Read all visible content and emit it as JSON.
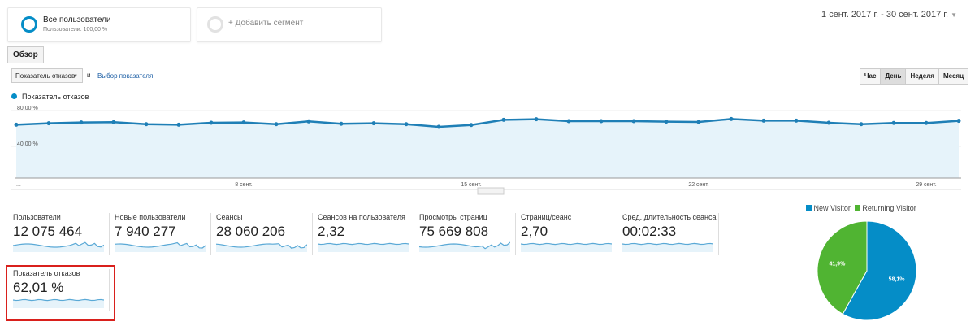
{
  "segments": [
    {
      "title": "Все пользователи",
      "subtitle": "Пользователи: 100,00 %"
    },
    {
      "title": "+ Добавить сегмент"
    }
  ],
  "date_range": "1 сент. 2017 г. - 30 сент. 2017 г.",
  "tab": "Обзор",
  "metric_select": "Показатель отказов",
  "and_label": "и",
  "choose_metric": "Выбор показателя",
  "granularity": [
    {
      "label": "Час"
    },
    {
      "label": "День",
      "active": true
    },
    {
      "label": "Неделя"
    },
    {
      "label": "Месяц"
    }
  ],
  "colors": {
    "accent": "#058dc7",
    "green": "#50b432",
    "highlight": "#d9201c"
  },
  "chart_data": [
    {
      "type": "area",
      "legend": "Показатель отказов",
      "y_ticks": [
        "80,00 %",
        "40,00 %"
      ],
      "x_ticks": [
        "...",
        "8 сент.",
        "15 сент.",
        "22 сент.",
        "29 сент."
      ],
      "ylim": [
        0,
        80
      ],
      "values": [
        64.2,
        65.8,
        66.7,
        67,
        64.8,
        64.2,
        66.4,
        66.7,
        64.8,
        67.9,
        65.2,
        65.8,
        64.8,
        61.8,
        63.9,
        69.7,
        70.3,
        68.2,
        68.2,
        68.2,
        67.6,
        67.3,
        70.6,
        68.8,
        68.8,
        66.4,
        64.8,
        66.1,
        66.1,
        68.5
      ]
    },
    {
      "type": "pie",
      "legend": [
        "New Visitor",
        "Returning Visitor"
      ],
      "values": [
        58.1,
        41.9
      ],
      "labels": [
        "58,1%",
        "41,9%"
      ]
    }
  ],
  "metrics": [
    {
      "label": "Пользователи",
      "value": "12 075 464"
    },
    {
      "label": "Новые пользователи",
      "value": "7 940 277"
    },
    {
      "label": "Сеансы",
      "value": "28 060 206"
    },
    {
      "label": "Сеансов на пользователя",
      "value": "2,32"
    },
    {
      "label": "Просмотры страниц",
      "value": "75 669 808"
    },
    {
      "label": "Страниц/сеанс",
      "value": "2,70"
    },
    {
      "label": "Сред. длительность сеанса",
      "value": "00:02:33"
    },
    {
      "label": "Показатель отказов",
      "value": "62,01 %"
    }
  ]
}
